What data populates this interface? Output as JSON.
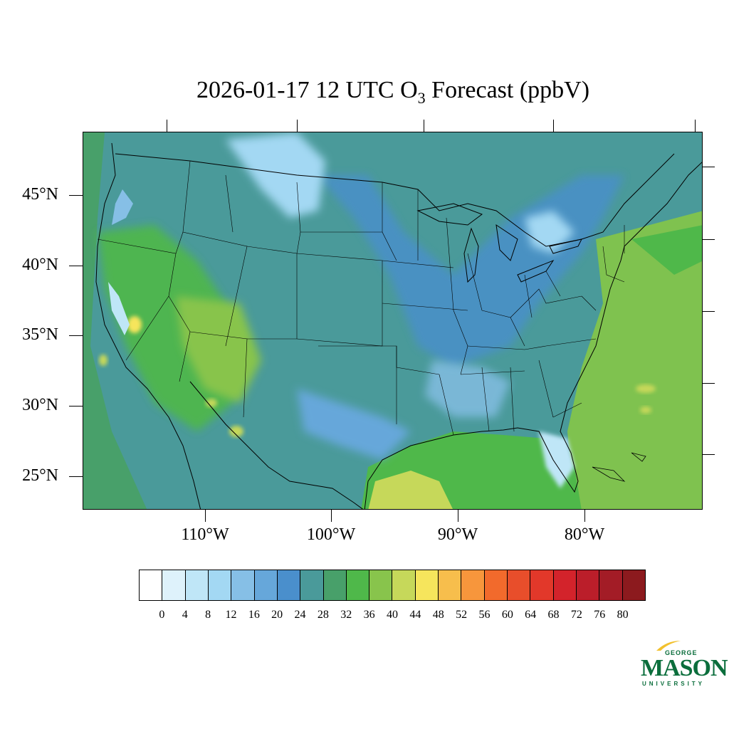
{
  "title": {
    "prefix": "2026-01-17 12 UTC O",
    "subscript": "3",
    "suffix": " Forecast (ppbV)"
  },
  "map": {
    "projection": "lambert-conformal",
    "lat_labels": [
      "45°N",
      "40°N",
      "35°N",
      "30°N",
      "25°N"
    ],
    "lon_labels": [
      "110°W",
      "100°W",
      "90°W",
      "80°W"
    ],
    "colors": {
      "ocean_west": "#4a9a9a",
      "land_base": "#4a9a9a",
      "ocean_east": "#7fc24f",
      "gulf": "#5fb55a"
    }
  },
  "colorbar": {
    "labels": [
      "0",
      "4",
      "8",
      "12",
      "16",
      "20",
      "24",
      "28",
      "32",
      "36",
      "40",
      "44",
      "48",
      "52",
      "56",
      "60",
      "64",
      "68",
      "72",
      "76",
      "80"
    ],
    "colors": [
      "#ffffff",
      "#def2fb",
      "#bfe6f7",
      "#a3d8f3",
      "#86bfe6",
      "#66a7da",
      "#4a8fcc",
      "#4a9a9a",
      "#48a06a",
      "#4fb84a",
      "#88c44c",
      "#c6d85a",
      "#f6e55c",
      "#f7be4c",
      "#f7963c",
      "#f26a2c",
      "#e84e2b",
      "#e2382a",
      "#d3232b",
      "#bb1e2a",
      "#a31c26",
      "#8c1a1e"
    ]
  },
  "logo": {
    "line1": "GEORGE",
    "line2": "MASON",
    "line3": "UNIVERSITY",
    "color": "#0b6e3c",
    "accent": "#f2c12e"
  }
}
